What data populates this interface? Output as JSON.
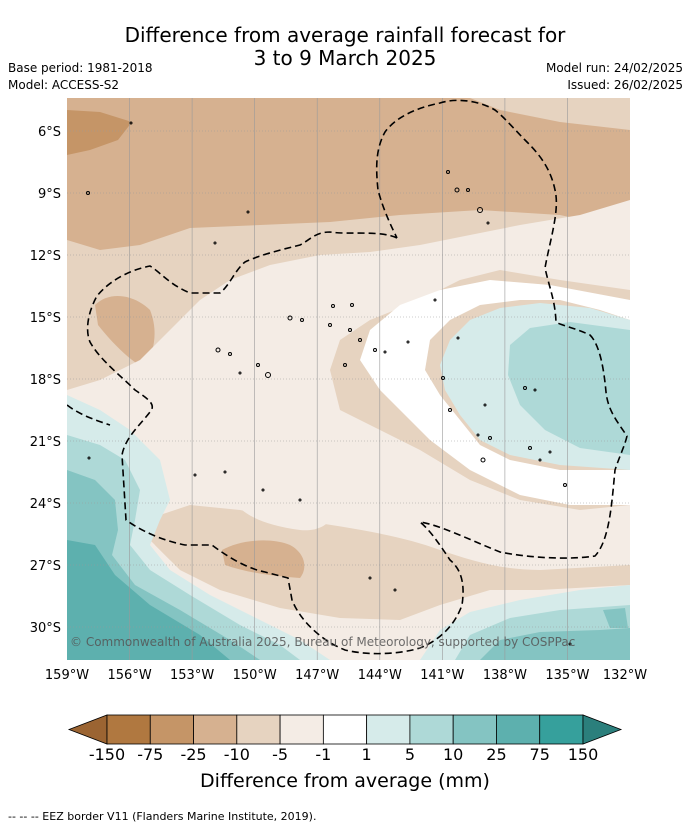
{
  "header": {
    "title_line1": "Difference from average rainfall forecast for",
    "title_line2": "3 to 9 March 2025",
    "base_period": "Base period: 1981-2018",
    "model": "Model: ACCESS-S2",
    "model_run": "Model run: 24/02/2025",
    "issued": "Issued: 26/02/2025"
  },
  "map": {
    "lat_labels": [
      "6°S",
      "9°S",
      "12°S",
      "15°S",
      "18°S",
      "21°S",
      "24°S",
      "27°S",
      "30°S"
    ],
    "lon_labels": [
      "159°W",
      "156°W",
      "153°W",
      "150°W",
      "147°W",
      "144°W",
      "141°W",
      "138°W",
      "135°W",
      "132°W"
    ],
    "lon_range": [
      -159,
      -132
    ],
    "lat_range": [
      -4.4,
      -31.5
    ],
    "watermark": "© Commonwealth of Australia 2025, Bureau of Meteorology, supported by COSPPac",
    "grid": true,
    "eez_border_style": "dashed black"
  },
  "colorbar": {
    "title": "Difference from average (mm)",
    "labels": [
      "-150",
      "-75",
      "-25",
      "-10",
      "-5",
      "-1",
      "1",
      "5",
      "10",
      "25",
      "75",
      "150"
    ],
    "colors": [
      "#9b6432",
      "#b07840",
      "#c59567",
      "#d6b190",
      "#e6d3c0",
      "#f4ece5",
      "#ffffff",
      "#d6ebea",
      "#aed9d7",
      "#84c4c2",
      "#5db0ae",
      "#36a09c",
      "#2b7f7c"
    ],
    "extend": "both"
  },
  "footer": {
    "eez_note": "--  --  -- EEZ border V11 (Flanders Marine Institute, 2019)."
  }
}
